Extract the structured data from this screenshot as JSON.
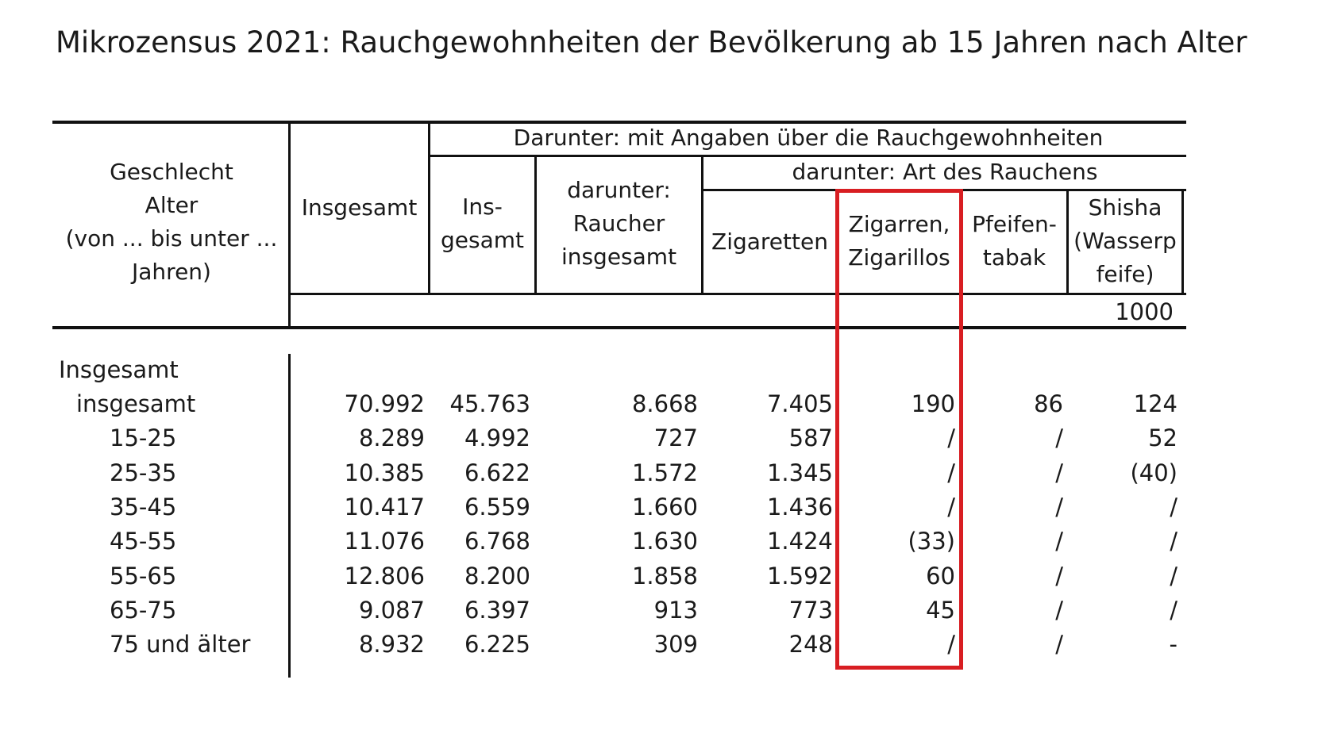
{
  "title": "Mikrozensus 2021: Rauchgewohnheiten der Bevölkerung ab 15 Jahren nach Alter",
  "header": {
    "stub": [
      "Geschlecht",
      "Alter",
      "(von ... bis unter ...",
      "Jahren)"
    ],
    "insgesamt": "Insgesamt",
    "group_top": "Darunter: mit Angaben über die Rauchgewohnheiten",
    "ins_gesamt": [
      "Ins-",
      "gesamt"
    ],
    "raucher": [
      "darunter:",
      "Raucher",
      "insgesamt"
    ],
    "group_art": "darunter: Art des Rauchens",
    "zigaretten": "Zigaretten",
    "zigarren": [
      "Zigarren,",
      "Zigarillos"
    ],
    "pfeife": [
      "Pfeifen-",
      "tabak"
    ],
    "shisha": [
      "Shisha",
      "(Wasserp",
      "feife)"
    ],
    "unit": "1000"
  },
  "section_label": "Insgesamt",
  "rows": [
    {
      "label": "insgesamt",
      "values": [
        "70.992",
        "45.763",
        "8.668",
        "7.405",
        "190",
        "86",
        "124"
      ]
    },
    {
      "label": "15-25",
      "values": [
        "8.289",
        "4.992",
        "727",
        "587",
        "/",
        "/",
        "52"
      ]
    },
    {
      "label": "25-35",
      "values": [
        "10.385",
        "6.622",
        "1.572",
        "1.345",
        "/",
        "/",
        "(40)"
      ]
    },
    {
      "label": "35-45",
      "values": [
        "10.417",
        "6.559",
        "1.660",
        "1.436",
        "/",
        "/",
        "/"
      ]
    },
    {
      "label": "45-55",
      "values": [
        "11.076",
        "6.768",
        "1.630",
        "1.424",
        "(33)",
        "/",
        "/"
      ]
    },
    {
      "label": "55-65",
      "values": [
        "12.806",
        "8.200",
        "1.858",
        "1.592",
        "60",
        "/",
        "/"
      ]
    },
    {
      "label": "65-75",
      "values": [
        "9.087",
        "6.397",
        "913",
        "773",
        "45",
        "/",
        "/"
      ]
    },
    {
      "label": "75 und älter",
      "values": [
        "8.932",
        "6.225",
        "309",
        "248",
        "/",
        "/",
        "-"
      ]
    }
  ],
  "highlight_color": "#d81e22"
}
